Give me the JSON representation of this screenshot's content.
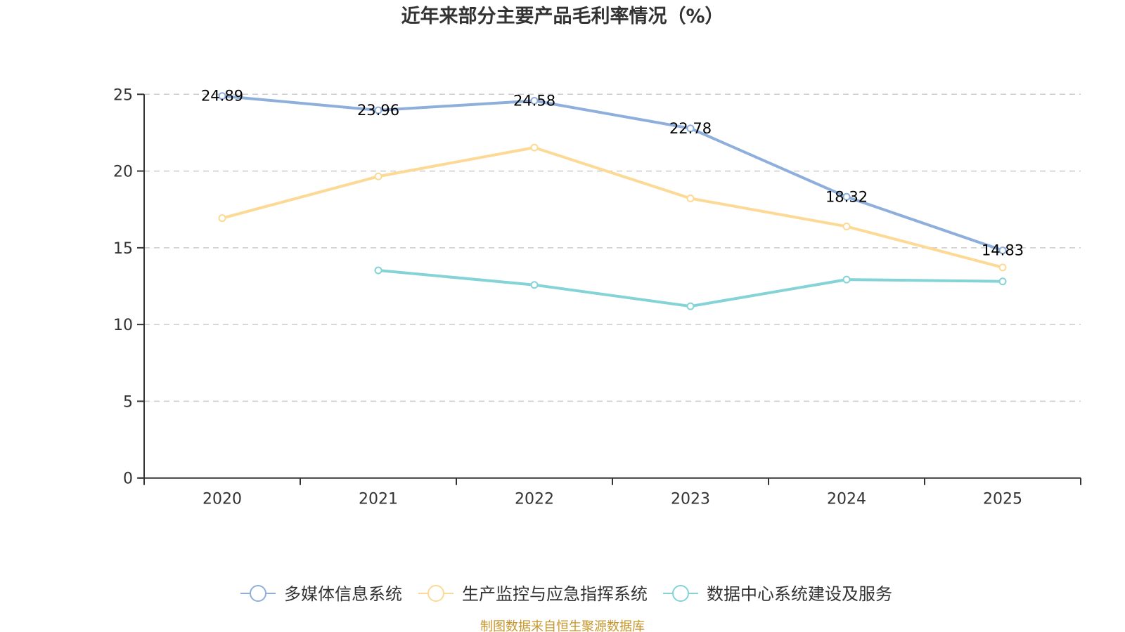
{
  "chart_data": {
    "type": "line",
    "title": "近年来部分主要产品毛利率情况（%）",
    "xlabel": "",
    "ylabel": "",
    "categories": [
      "2020",
      "2021",
      "2022",
      "2023",
      "2024",
      "2025"
    ],
    "ylim": [
      0,
      25
    ],
    "yticks": [
      0,
      5,
      10,
      15,
      20,
      25
    ],
    "grid": true,
    "legend_position": "bottom",
    "series": [
      {
        "name": "多媒体信息系统",
        "color": "#8eaedb",
        "values": [
          24.89,
          23.96,
          24.58,
          22.78,
          18.32,
          14.83
        ],
        "labels": [
          "24.89",
          "23.96",
          "24.58",
          "22.78",
          "18.32",
          "14.83"
        ],
        "show_labels": true
      },
      {
        "name": "生产监控与应急指挥系统",
        "color": "#fdd996",
        "values": [
          16.93,
          19.65,
          21.53,
          18.22,
          16.39,
          13.72
        ],
        "show_labels": false
      },
      {
        "name": "数据中心系统建设及服务",
        "color": "#84d3d6",
        "values": [
          null,
          13.53,
          12.58,
          11.19,
          12.93,
          12.81
        ],
        "show_labels": false
      }
    ],
    "source_note": "制图数据来自恒生聚源数据库"
  }
}
